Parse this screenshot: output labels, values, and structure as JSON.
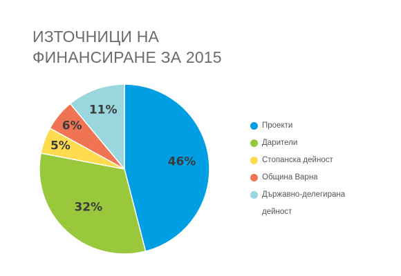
{
  "chart_data": {
    "type": "pie",
    "title": [
      "ИЗТОЧНИЦИ НА",
      "ФИНАНСИРАНЕ ЗА 2015"
    ],
    "legend_position": "right",
    "slices": [
      {
        "name": "Проекти",
        "value": 46,
        "label": "46%",
        "color": "#009fe3"
      },
      {
        "name": "Дарители",
        "value": 32,
        "label": "32%",
        "color": "#9ac83d"
      },
      {
        "name": "Стопанска дейност",
        "value": 5,
        "label": "5%",
        "color": "#ffdb4d"
      },
      {
        "name": "Община Варна",
        "value": 6,
        "label": "6%",
        "color": "#f07454"
      },
      {
        "name": "Държавно-делегирана дейност",
        "value": 11,
        "label": "11%",
        "color": "#9ad6de"
      }
    ]
  },
  "legend": [
    {
      "label": "Проекти",
      "color": "#009fe3"
    },
    {
      "label": "Дарители",
      "color": "#9ac83d"
    },
    {
      "label": "Стопанска дейност",
      "color": "#ffdb4d"
    },
    {
      "label": "Община Варна",
      "color": "#f07454"
    },
    {
      "label": "Държавно-делегирана дейност",
      "color": "#9ad6de"
    }
  ]
}
